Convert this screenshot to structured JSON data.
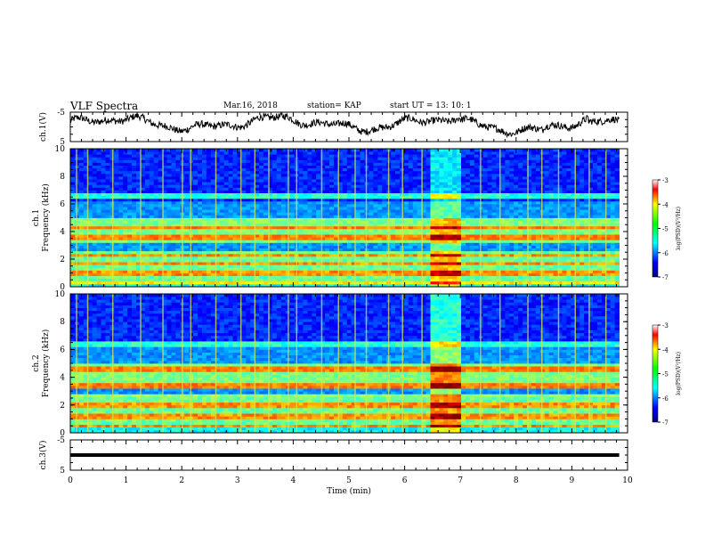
{
  "header": {
    "title": "VLF Spectra",
    "date": "Mar.16, 2018",
    "station": "station= KAP",
    "start": "start  UT  =   13: 10: 1"
  },
  "chart_data": {
    "type": "heatmap",
    "xlabel": "Time (min)",
    "xlim": [
      0,
      10
    ],
    "xticks": [
      "0",
      "1",
      "2",
      "3",
      "4",
      "5",
      "6",
      "7",
      "8",
      "9",
      "10"
    ],
    "panels": [
      {
        "id": "ch1-voltage",
        "type": "line",
        "ylabel": "ch.1(V)",
        "ylim": [
          -5,
          5
        ],
        "yticks": [
          "5",
          "-5"
        ]
      },
      {
        "id": "ch1-spectrogram",
        "type": "heatmap",
        "ylabel_line1": "ch.1",
        "ylabel_line2": "Frequency (kHz)",
        "ylim": [
          0,
          10
        ],
        "yticks": [
          "0",
          "2",
          "4",
          "6",
          "8",
          "10"
        ],
        "colorbar": {
          "label": "log(PSD)(V²/Hz)",
          "range": [
            -7,
            -3
          ],
          "ticks": [
            "-3",
            "-4",
            "-5",
            "-6",
            "-7"
          ]
        }
      },
      {
        "id": "ch2-spectrogram",
        "type": "heatmap",
        "ylabel_line1": "ch.2",
        "ylabel_line2": "Frequency (kHz)",
        "ylim": [
          0,
          10
        ],
        "yticks": [
          "0",
          "2",
          "4",
          "6",
          "8",
          "10"
        ],
        "colorbar": {
          "label": "log(PSD)(V²/Hz)",
          "range": [
            -7,
            -3
          ],
          "ticks": [
            "-3",
            "-4",
            "-5",
            "-6",
            "-7"
          ]
        }
      },
      {
        "id": "ch3-voltage",
        "type": "line",
        "ylabel": "ch.3(V)",
        "ylim": [
          -5,
          5
        ],
        "yticks": [
          "5",
          "-5"
        ],
        "constant_value": 0
      }
    ],
    "observations": {
      "data_end_min": 9.85,
      "enhanced_interval_min": [
        6.5,
        7.05
      ],
      "ch1_bands_khz": [
        0.3,
        1.0,
        1.7,
        2.3,
        3.6,
        4.3,
        6.6
      ],
      "ch2_bands_khz": [
        0.5,
        1.2,
        2.0,
        2.7,
        3.4,
        4.6,
        6.4
      ],
      "burst_times_min": [
        0.1,
        0.3,
        0.75,
        1.25,
        1.65,
        2.0,
        2.15,
        2.6,
        3.05,
        3.3,
        3.55,
        3.9,
        4.05,
        4.5,
        4.8,
        5.1,
        5.3,
        5.7,
        5.95,
        6.3,
        7.35,
        7.7,
        8.2,
        8.45,
        8.75,
        9.05,
        9.3,
        9.6
      ]
    }
  }
}
